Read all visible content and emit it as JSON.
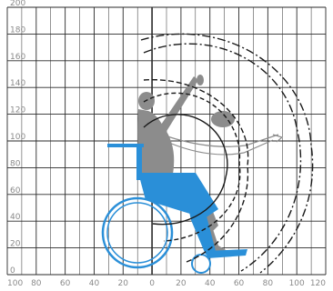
{
  "diagram": {
    "grid_color": "#2a2a2a",
    "arc_color": "#1a1a1a",
    "figure_color": "#8c8c8c",
    "wheelchair_color": "#2a8fd8",
    "y_ticks": [
      "0",
      "20",
      "40",
      "60",
      "80",
      "100",
      "120",
      "140",
      "160",
      "180",
      "200"
    ],
    "x_ticks": [
      "100",
      "80",
      "60",
      "40",
      "20",
      "0",
      "20",
      "40",
      "60",
      "80",
      "100",
      "120"
    ],
    "icons": [
      "seated-person-figure",
      "wheelchair",
      "reach-arcs"
    ]
  }
}
